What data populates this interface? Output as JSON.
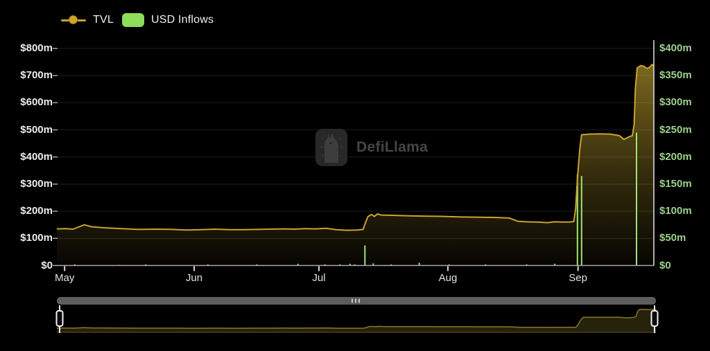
{
  "legend": {
    "tvl_label": "TVL",
    "inflows_label": "USD Inflows"
  },
  "watermark": {
    "text": "DefiLlama"
  },
  "colors": {
    "background": "#000000",
    "tvl_line": "#c9a42e",
    "tvl_fill": "#d8b434",
    "inflow_bar": "#9fe671",
    "legend_swatch_green": "#8fdd5a",
    "left_axis_text": "#ececec",
    "right_axis_text": "#9cd18d",
    "month_text": "#e3e3e3",
    "grid": "#1f1f1f",
    "axis_line": "#a8a8a8",
    "right_axis_line": "#e6e6e6",
    "tick_mark": "#d8d8d8",
    "scrollbar_track": "#5d5d5d",
    "scrollbar_grip": "#c8c8c8",
    "nav_line": "#8a7824",
    "nav_fill": "#26220c",
    "nav_baseline": "#4a4118",
    "handle": "#f2f2f2"
  },
  "chart_data": {
    "type": "line+bar",
    "title": "",
    "left_axis": {
      "unit": "USD (TVL)",
      "tick_labels": [
        "$0",
        "$100m",
        "$200m",
        "$300m",
        "$400m",
        "$500m",
        "$600m",
        "$700m",
        "$800m"
      ],
      "tick_values": [
        0,
        100,
        200,
        300,
        400,
        500,
        600,
        700,
        800
      ],
      "range": [
        0,
        800
      ]
    },
    "right_axis": {
      "unit": "USD (Inflows)",
      "tick_labels": [
        "$0",
        "$50m",
        "$100m",
        "$150m",
        "$200m",
        "$250m",
        "$300m",
        "$350m",
        "$400m"
      ],
      "tick_values": [
        0,
        50,
        100,
        150,
        200,
        250,
        300,
        350,
        400
      ],
      "range": [
        0,
        400
      ]
    },
    "x_axis": {
      "tick_labels": [
        "May",
        "Jun",
        "Jul",
        "Aug",
        "Sep"
      ],
      "tick_pos": [
        0.013,
        0.23,
        0.439,
        0.655,
        0.873
      ],
      "grid": false
    },
    "series": [
      {
        "name": "TVL",
        "type": "line",
        "axis": "left",
        "color": "#c9a42e",
        "points": [
          [
            0,
            135
          ],
          [
            0.015,
            136
          ],
          [
            0.027,
            134
          ],
          [
            0.046,
            150
          ],
          [
            0.058,
            143
          ],
          [
            0.079,
            139
          ],
          [
            0.108,
            136
          ],
          [
            0.137,
            133
          ],
          [
            0.166,
            134
          ],
          [
            0.195,
            133
          ],
          [
            0.218,
            131
          ],
          [
            0.242,
            132
          ],
          [
            0.265,
            134
          ],
          [
            0.288,
            132
          ],
          [
            0.311,
            132
          ],
          [
            0.335,
            133
          ],
          [
            0.358,
            134
          ],
          [
            0.381,
            135
          ],
          [
            0.398,
            134
          ],
          [
            0.416,
            136
          ],
          [
            0.433,
            135
          ],
          [
            0.451,
            137
          ],
          [
            0.468,
            132
          ],
          [
            0.486,
            130
          ],
          [
            0.503,
            131
          ],
          [
            0.513,
            133
          ],
          [
            0.517,
            158
          ],
          [
            0.521,
            180
          ],
          [
            0.527,
            188
          ],
          [
            0.532,
            181
          ],
          [
            0.537,
            190
          ],
          [
            0.543,
            186
          ],
          [
            0.561,
            185
          ],
          [
            0.59,
            183
          ],
          [
            0.619,
            182
          ],
          [
            0.648,
            181
          ],
          [
            0.677,
            179
          ],
          [
            0.706,
            178
          ],
          [
            0.735,
            177
          ],
          [
            0.758,
            175
          ],
          [
            0.765,
            169
          ],
          [
            0.772,
            163
          ],
          [
            0.787,
            161
          ],
          [
            0.805,
            160
          ],
          [
            0.822,
            158
          ],
          [
            0.834,
            161
          ],
          [
            0.848,
            160
          ],
          [
            0.859,
            160
          ],
          [
            0.866,
            162
          ],
          [
            0.869,
            210
          ],
          [
            0.872,
            320
          ],
          [
            0.876,
            430
          ],
          [
            0.879,
            482
          ],
          [
            0.892,
            484
          ],
          [
            0.909,
            485
          ],
          [
            0.927,
            484
          ],
          [
            0.942,
            479
          ],
          [
            0.95,
            465
          ],
          [
            0.958,
            474
          ],
          [
            0.964,
            479
          ],
          [
            0.967,
            520
          ],
          [
            0.969,
            650
          ],
          [
            0.972,
            728
          ],
          [
            0.978,
            737
          ],
          [
            0.984,
            734
          ],
          [
            0.988,
            726
          ],
          [
            0.993,
            731
          ],
          [
            0.997,
            741
          ],
          [
            1,
            736
          ]
        ]
      },
      {
        "name": "USD Inflows",
        "type": "bar",
        "axis": "right",
        "color": "#9fe671",
        "points": [
          [
            0.03,
            2
          ],
          [
            0.105,
            1
          ],
          [
            0.149,
            2
          ],
          [
            0.253,
            2
          ],
          [
            0.335,
            2
          ],
          [
            0.404,
            3
          ],
          [
            0.449,
            2
          ],
          [
            0.474,
            2
          ],
          [
            0.491,
            3
          ],
          [
            0.499,
            2
          ],
          [
            0.516,
            37
          ],
          [
            0.53,
            4
          ],
          [
            0.56,
            2
          ],
          [
            0.607,
            5
          ],
          [
            0.657,
            2
          ],
          [
            0.718,
            2
          ],
          [
            0.787,
            2
          ],
          [
            0.834,
            3
          ],
          [
            0.872,
            168
          ],
          [
            0.879,
            165
          ],
          [
            0.971,
            245
          ]
        ]
      }
    ],
    "legend_position": "top-left"
  }
}
